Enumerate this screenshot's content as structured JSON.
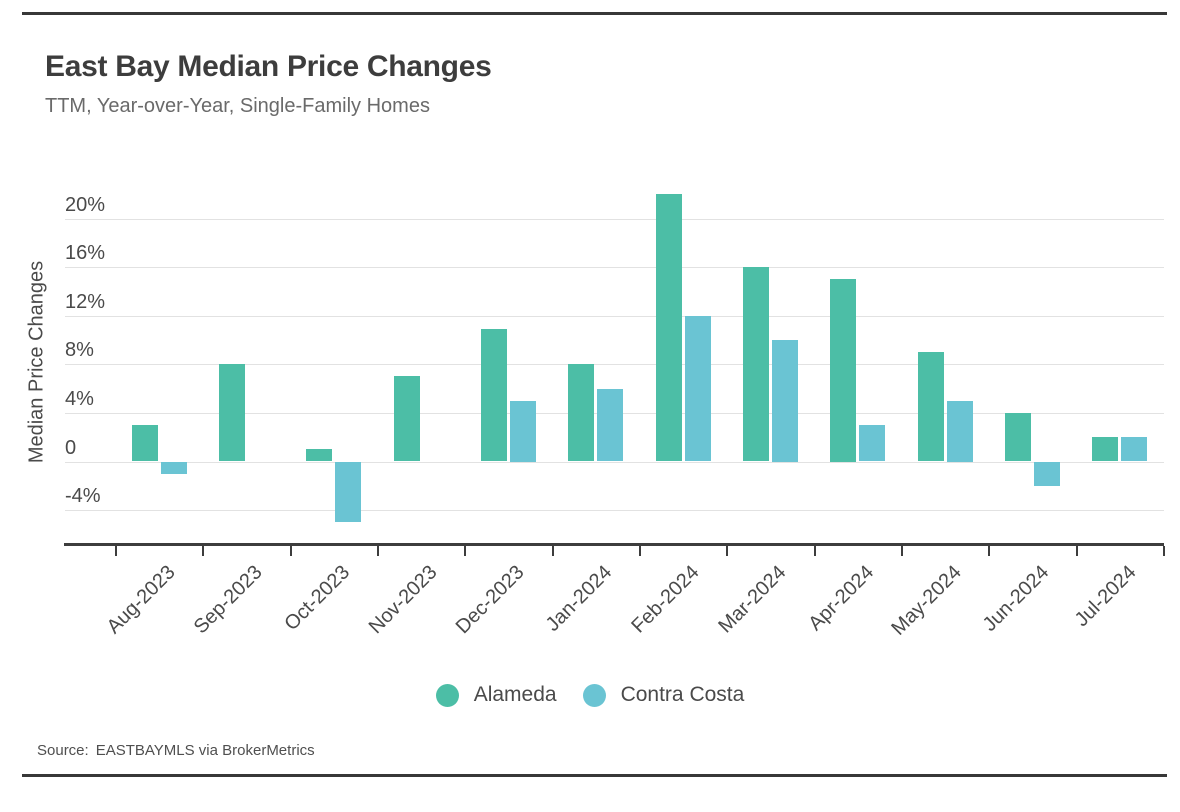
{
  "chart_data": {
    "type": "bar",
    "title": "East Bay Median Price Changes",
    "subtitle": "TTM, Year-over-Year, Single-Family Homes",
    "ylabel": "Median Price Changes",
    "xlabel": "",
    "categories": [
      "Aug-2023",
      "Sep-2023",
      "Oct-2023",
      "Nov-2023",
      "Dec-2023",
      "Jan-2024",
      "Feb-2024",
      "Mar-2024",
      "Apr-2024",
      "May-2024",
      "Jun-2024",
      "Jul-2024"
    ],
    "series": [
      {
        "name": "Alameda",
        "color": "#4CBEA6",
        "values": [
          3,
          8,
          1,
          7,
          10.9,
          8,
          22,
          16,
          15,
          9,
          4,
          2
        ]
      },
      {
        "name": "Contra Costa",
        "color": "#6AC4D3",
        "values": [
          -1,
          0,
          -5,
          0,
          5,
          6,
          12,
          10,
          3,
          5,
          -2,
          2
        ]
      }
    ],
    "yticks": [
      {
        "label": "20%",
        "value": 20
      },
      {
        "label": "16%",
        "value": 16
      },
      {
        "label": "12%",
        "value": 12
      },
      {
        "label": "8%",
        "value": 8
      },
      {
        "label": "4%",
        "value": 4
      },
      {
        "label": "0",
        "value": 0
      },
      {
        "label": "-4%",
        "value": -4
      }
    ],
    "ylim": [
      -7,
      22.5
    ],
    "grid": "horizontal",
    "legend_position": "bottom"
  },
  "source": {
    "prefix": "Source:",
    "text": "EASTBAYMLS via BrokerMetrics"
  },
  "colors": {
    "axis": "#3d3d3d",
    "gridline": "#e2e2e2",
    "title_text": "#3d3d3d",
    "subtitle_text": "#6a6a6a",
    "tick_text": "#4a4a4a",
    "border_rule": "#383838"
  }
}
